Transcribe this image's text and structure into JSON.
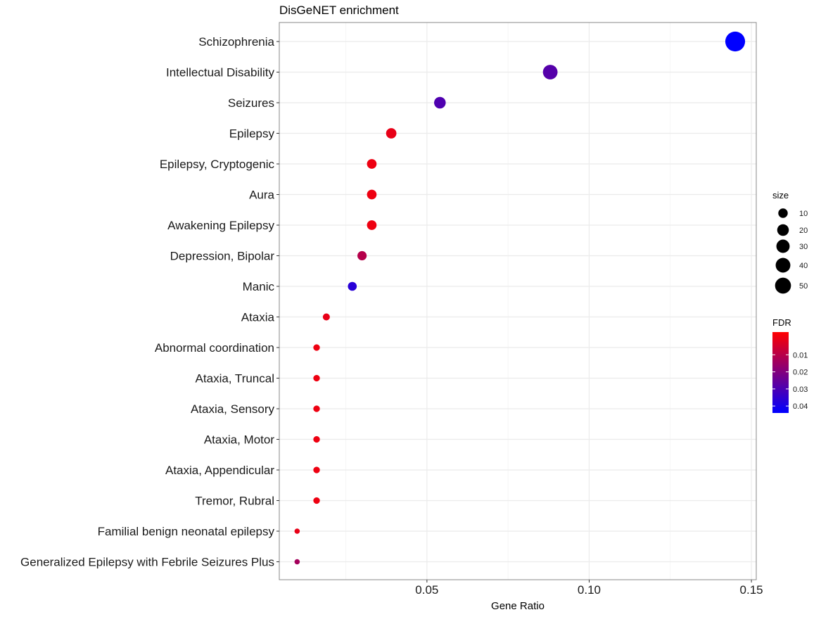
{
  "chart_data": {
    "type": "scatter",
    "title": "DisGeNET enrichment",
    "xlabel": "Gene Ratio",
    "ylabel": "",
    "xlim": [
      0.0045,
      0.1515
    ],
    "xticks": [
      0.05,
      0.1,
      0.15
    ],
    "xtick_labels": [
      "0.05",
      "0.10",
      "0.15"
    ],
    "grid": true,
    "categories": [
      "Schizophrenia",
      "Intellectual Disability",
      "Seizures",
      "Epilepsy",
      "Epilepsy, Cryptogenic",
      "Aura",
      "Awakening Epilepsy",
      "Depression, Bipolar",
      "Manic",
      "Ataxia",
      "Abnormal coordination",
      "Ataxia, Truncal",
      "Ataxia, Sensory",
      "Ataxia, Motor",
      "Ataxia, Appendicular",
      "Tremor, Rubral",
      "Familial benign neonatal epilepsy",
      "Generalized Epilepsy with Febrile Seizures Plus"
    ],
    "series": [
      {
        "x": [
          0.145,
          0.088,
          0.054,
          0.039,
          0.033,
          0.033,
          0.033,
          0.03,
          0.027,
          0.019,
          0.016,
          0.016,
          0.016,
          0.016,
          0.016,
          0.016,
          0.01,
          0.01
        ],
        "size": [
          55,
          30,
          19,
          15,
          13,
          13,
          13,
          12,
          11,
          7,
          6,
          6,
          6,
          6,
          6,
          6,
          4,
          4
        ],
        "fdr": [
          0.045,
          0.03,
          0.031,
          0.004,
          0.003,
          0.003,
          0.003,
          0.013,
          0.038,
          0.004,
          0.003,
          0.003,
          0.003,
          0.003,
          0.003,
          0.003,
          0.004,
          0.016
        ]
      }
    ],
    "legend": {
      "placement": "right",
      "size": {
        "title": "size",
        "values": [
          10,
          20,
          30,
          40,
          50
        ],
        "labels": [
          "10",
          "20",
          "30",
          "40",
          "50"
        ]
      },
      "color": {
        "title": "FDR",
        "low_color": "#0000ff",
        "high_color": "#ff0000",
        "range": [
          0.0,
          0.045
        ],
        "ticks": [
          0.01,
          0.02,
          0.03,
          0.04
        ],
        "tick_labels": [
          "0.01",
          "0.02",
          "0.03",
          "0.04"
        ]
      }
    },
    "colors": {
      "panel_background": "#ffffff",
      "grid": "#ebebeb",
      "border": "#888888"
    }
  }
}
